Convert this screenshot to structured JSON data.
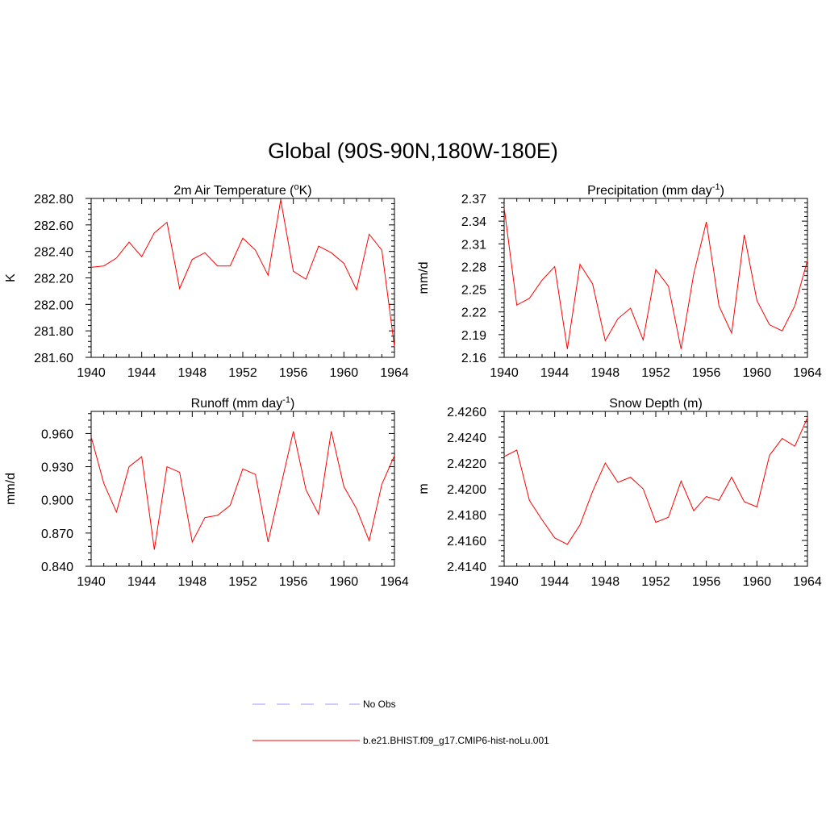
{
  "figure_title": "Global (90S-90N,180W-180E)",
  "legend": [
    {
      "label": "No Obs",
      "color": "#9999ff",
      "style": "dashed"
    },
    {
      "label": "b.e21.BHIST.f09_g17.CMIP6-hist-noLu.001",
      "color": "#ff0000",
      "style": "solid"
    }
  ],
  "chart_data": [
    {
      "type": "line",
      "title": "2m Air Temperature (",
      "title_sup": "o",
      "title_after": "K)",
      "ylabel": "K",
      "x": [
        1940,
        1941,
        1942,
        1943,
        1944,
        1945,
        1946,
        1947,
        1948,
        1949,
        1950,
        1951,
        1952,
        1953,
        1954,
        1955,
        1956,
        1957,
        1958,
        1959,
        1960,
        1961,
        1962,
        1963,
        1964
      ],
      "xlim": [
        1940,
        1964
      ],
      "xticks": [
        "1940",
        "1944",
        "1948",
        "1952",
        "1956",
        "1960",
        "1964"
      ],
      "ylim": [
        281.6,
        282.8
      ],
      "yticks": [
        "281.60",
        "281.80",
        "282.00",
        "282.20",
        "282.40",
        "282.60",
        "282.80"
      ],
      "series": [
        {
          "color": "#ff0000",
          "values": [
            282.28,
            282.29,
            282.35,
            282.47,
            282.36,
            282.54,
            282.62,
            282.12,
            282.34,
            282.39,
            282.29,
            282.29,
            282.5,
            282.41,
            282.22,
            282.79,
            282.25,
            282.19,
            282.44,
            282.39,
            282.31,
            282.11,
            282.53,
            282.41,
            281.68
          ]
        }
      ]
    },
    {
      "type": "line",
      "title": "Precipitation (mm day",
      "title_sup": "-1",
      "title_after": ")",
      "ylabel": "mm/d",
      "x": [
        1940,
        1941,
        1942,
        1943,
        1944,
        1945,
        1946,
        1947,
        1948,
        1949,
        1950,
        1951,
        1952,
        1953,
        1954,
        1955,
        1956,
        1957,
        1958,
        1959,
        1960,
        1961,
        1962,
        1963,
        1964
      ],
      "xlim": [
        1940,
        1964
      ],
      "xticks": [
        "1940",
        "1944",
        "1948",
        "1952",
        "1956",
        "1960",
        "1964"
      ],
      "ylim": [
        2.16,
        2.37
      ],
      "yticks": [
        "2.16",
        "2.19",
        "2.22",
        "2.25",
        "2.28",
        "2.31",
        "2.34",
        "2.37"
      ],
      "series": [
        {
          "color": "#ff0000",
          "values": [
            2.358,
            2.229,
            2.238,
            2.262,
            2.28,
            2.171,
            2.283,
            2.257,
            2.182,
            2.211,
            2.225,
            2.183,
            2.276,
            2.254,
            2.171,
            2.27,
            2.339,
            2.228,
            2.192,
            2.322,
            2.235,
            2.203,
            2.195,
            2.228,
            2.288
          ]
        }
      ]
    },
    {
      "type": "line",
      "title": "Runoff (mm day",
      "title_sup": "-1",
      "title_after": ")",
      "ylabel": "mm/d",
      "x": [
        1940,
        1941,
        1942,
        1943,
        1944,
        1945,
        1946,
        1947,
        1948,
        1949,
        1950,
        1951,
        1952,
        1953,
        1954,
        1955,
        1956,
        1957,
        1958,
        1959,
        1960,
        1961,
        1962,
        1963,
        1964
      ],
      "xlim": [
        1940,
        1964
      ],
      "xticks": [
        "1940",
        "1944",
        "1948",
        "1952",
        "1956",
        "1960",
        "1964"
      ],
      "ylim": [
        0.84,
        0.98
      ],
      "yticks": [
        "0.840",
        "0.870",
        "0.900",
        "0.930",
        "0.960"
      ],
      "series": [
        {
          "color": "#ff0000",
          "values": [
            0.957,
            0.915,
            0.889,
            0.93,
            0.939,
            0.855,
            0.93,
            0.925,
            0.862,
            0.884,
            0.886,
            0.895,
            0.928,
            0.923,
            0.862,
            0.912,
            0.962,
            0.909,
            0.887,
            0.962,
            0.912,
            0.892,
            0.863,
            0.914,
            0.94
          ]
        }
      ]
    },
    {
      "type": "line",
      "title": "Snow Depth (m)",
      "title_sup": "",
      "title_after": "",
      "ylabel": "m",
      "x": [
        1940,
        1941,
        1942,
        1943,
        1944,
        1945,
        1946,
        1947,
        1948,
        1949,
        1950,
        1951,
        1952,
        1953,
        1954,
        1955,
        1956,
        1957,
        1958,
        1959,
        1960,
        1961,
        1962,
        1963,
        1964
      ],
      "xlim": [
        1940,
        1964
      ],
      "xticks": [
        "1940",
        "1944",
        "1948",
        "1952",
        "1956",
        "1960",
        "1964"
      ],
      "ylim": [
        2.414,
        2.426
      ],
      "yticks": [
        "2.4140",
        "2.4160",
        "2.4180",
        "2.4200",
        "2.4220",
        "2.4240",
        "2.4260"
      ],
      "series": [
        {
          "color": "#ff0000",
          "values": [
            2.4225,
            2.423,
            2.4191,
            2.4176,
            2.4162,
            2.4157,
            2.4172,
            2.4198,
            2.422,
            2.4205,
            2.4209,
            2.42,
            2.4174,
            2.4178,
            2.4206,
            2.4183,
            2.4194,
            2.4191,
            2.4209,
            2.419,
            2.4186,
            2.4226,
            2.4239,
            2.4233,
            2.4255
          ]
        }
      ]
    }
  ]
}
